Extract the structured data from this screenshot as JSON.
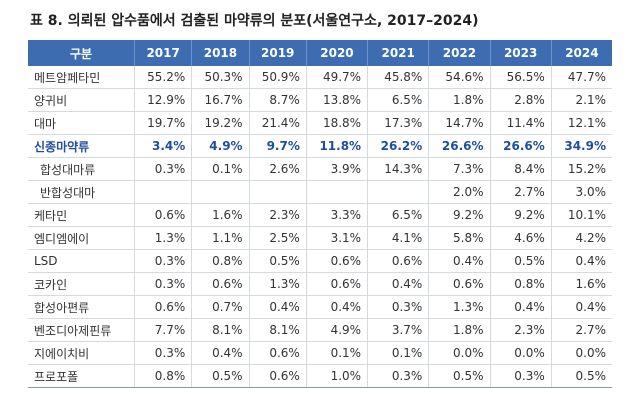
{
  "title": "표 8. 의뢰된 압수품에서 검출된 마약류의 분포(서울연구소, 2017–2024)",
  "table": {
    "header": [
      "구분",
      "2017",
      "2018",
      "2019",
      "2020",
      "2021",
      "2022",
      "2023",
      "2024"
    ],
    "rows": [
      [
        "메트암페타민",
        "55.2%",
        "50.3%",
        "50.9%",
        "49.7%",
        "45.8%",
        "54.6%",
        "56.5%",
        "47.7%"
      ],
      [
        "양귀비",
        "12.9%",
        "16.7%",
        "8.7%",
        "13.8%",
        "6.5%",
        "1.8%",
        "2.8%",
        "2.1%"
      ],
      [
        "대마",
        "19.7%",
        "19.2%",
        "21.4%",
        "18.8%",
        "17.3%",
        "14.7%",
        "11.4%",
        "12.1%"
      ],
      [
        "신종마약류",
        "3.4%",
        "4.9%",
        "9.7%",
        "11.8%",
        "26.2%",
        "26.6%",
        "26.6%",
        "34.9%"
      ],
      [
        "합성대마류",
        "0.3%",
        "0.1%",
        "2.6%",
        "3.9%",
        "14.3%",
        "7.3%",
        "8.4%",
        "15.2%"
      ],
      [
        "반합성대마",
        null,
        null,
        null,
        null,
        null,
        "2.0%",
        "2.7%",
        "3.0%"
      ],
      [
        "케타민",
        "0.6%",
        "1.6%",
        "2.3%",
        "3.3%",
        "6.5%",
        "9.2%",
        "9.2%",
        "10.1%"
      ],
      [
        "엠디엠에이",
        "1.3%",
        "1.1%",
        "2.5%",
        "3.1%",
        "4.1%",
        "5.8%",
        "4.6%",
        "4.2%"
      ],
      [
        "LSD",
        "0.3%",
        "0.8%",
        "0.5%",
        "0.6%",
        "0.6%",
        "0.4%",
        "0.5%",
        "0.4%"
      ],
      [
        "코카인",
        "0.3%",
        "0.6%",
        "1.3%",
        "0.6%",
        "0.4%",
        "0.6%",
        "0.8%",
        "1.6%"
      ],
      [
        "합성아편류",
        "0.6%",
        "0.7%",
        "0.4%",
        "0.4%",
        "0.3%",
        "1.3%",
        "0.4%",
        "0.4%"
      ],
      [
        "벤조디아제핀류",
        "7.7%",
        "8.1%",
        "8.1%",
        "4.9%",
        "3.7%",
        "1.8%",
        "2.3%",
        "2.7%"
      ],
      [
        "지에이치비",
        "0.3%",
        "0.4%",
        "0.6%",
        "0.1%",
        "0.1%",
        "0.0%",
        "0.0%",
        "0.0%"
      ],
      [
        "프로포폴",
        "0.8%",
        "0.5%",
        "0.6%",
        "1.0%",
        "0.3%",
        "0.5%",
        "0.3%",
        "0.5%"
      ]
    ]
  }
}
